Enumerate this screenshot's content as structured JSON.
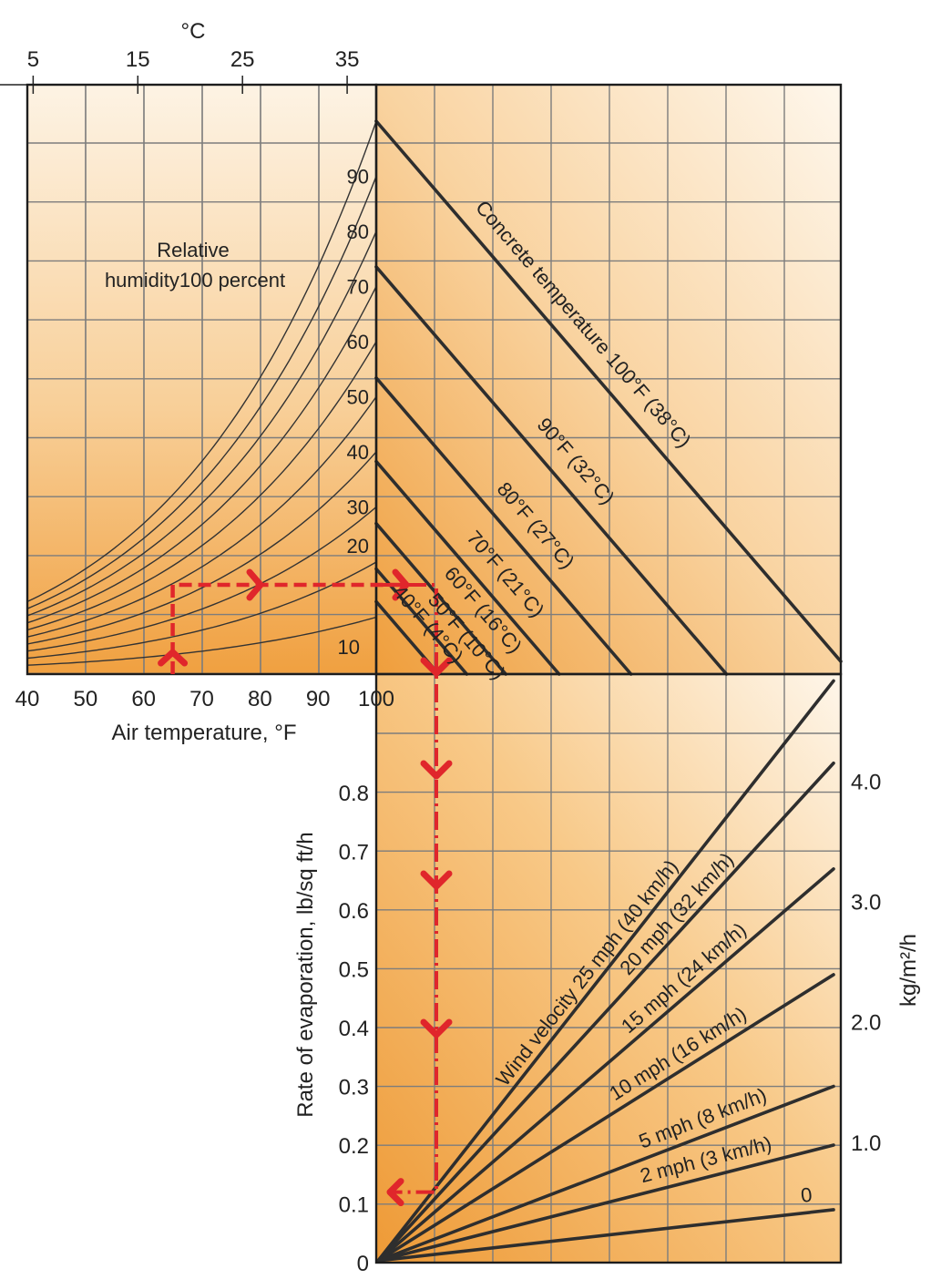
{
  "chart_data": {
    "type": "line",
    "title": "",
    "colors": {
      "background_light": "#fdf3e4",
      "background_dark": "#f0a040",
      "grid": "#7d7d7d",
      "lines": "#2e2e2e",
      "example_path": "#e0262b"
    },
    "panels": {
      "humidity": {
        "x_axis": {
          "label": "Air temperature, °F",
          "ticks": [
            "40",
            "50",
            "60",
            "70",
            "80",
            "90",
            "100"
          ],
          "range": [
            40,
            100
          ]
        },
        "top_axis": {
          "label": "°C",
          "ticks": [
            "5",
            "15",
            "25",
            "35"
          ]
        },
        "caption_line1": "Relative",
        "caption_line2": "humidity100 percent",
        "series": [
          {
            "rh": 100,
            "label": ""
          },
          {
            "rh": 90,
            "label": "90"
          },
          {
            "rh": 80,
            "label": "80"
          },
          {
            "rh": 70,
            "label": "70"
          },
          {
            "rh": 60,
            "label": "60"
          },
          {
            "rh": 50,
            "label": "50"
          },
          {
            "rh": 40,
            "label": "40"
          },
          {
            "rh": 30,
            "label": "30"
          },
          {
            "rh": 20,
            "label": "20"
          },
          {
            "rh": 10,
            "label": "10"
          }
        ]
      },
      "concrete": {
        "series": [
          {
            "temp_f": 100,
            "label": "Concrete temperature 100°F (38°C)"
          },
          {
            "temp_f": 90,
            "label": "90°F (32°C)"
          },
          {
            "temp_f": 80,
            "label": "80°F (27°C)"
          },
          {
            "temp_f": 70,
            "label": "70°F (21°C)"
          },
          {
            "temp_f": 60,
            "label": "60°F (16°C)"
          },
          {
            "temp_f": 50,
            "label": "50°F (10°C)"
          },
          {
            "temp_f": 40,
            "label": "40°F (4°C)"
          }
        ]
      },
      "wind": {
        "y_axis": {
          "label": "Rate of evaporation, lb/sq ft/h",
          "ticks": [
            "0",
            "0.1",
            "0.2",
            "0.3",
            "0.4",
            "0.5",
            "0.6",
            "0.7",
            "0.8"
          ],
          "range": [
            0,
            0.9
          ]
        },
        "y2_axis": {
          "label": "kg/m²/h",
          "ticks": [
            "1.0",
            "2.0",
            "3.0",
            "4.0"
          ]
        },
        "series": [
          {
            "mph": 25,
            "label": "Wind velocity 25 mph (40 km/h)",
            "rate_at_right": 0.99
          },
          {
            "mph": 20,
            "label": "20 mph (32 km/h)",
            "rate_at_right": 0.85
          },
          {
            "mph": 15,
            "label": "15 mph (24 km/h)",
            "rate_at_right": 0.67
          },
          {
            "mph": 10,
            "label": "10 mph (16 km/h)",
            "rate_at_right": 0.49
          },
          {
            "mph": 5,
            "label": "5 mph (8 km/h)",
            "rate_at_right": 0.3
          },
          {
            "mph": 2,
            "label": "2 mph (3 km/h)",
            "rate_at_right": 0.2
          },
          {
            "mph": 0,
            "label": "0",
            "rate_at_right": 0.09
          }
        ]
      }
    },
    "example_path": {
      "air_temp_f": 65,
      "concrete_temp_f": 60,
      "rate": 0.12
    }
  }
}
